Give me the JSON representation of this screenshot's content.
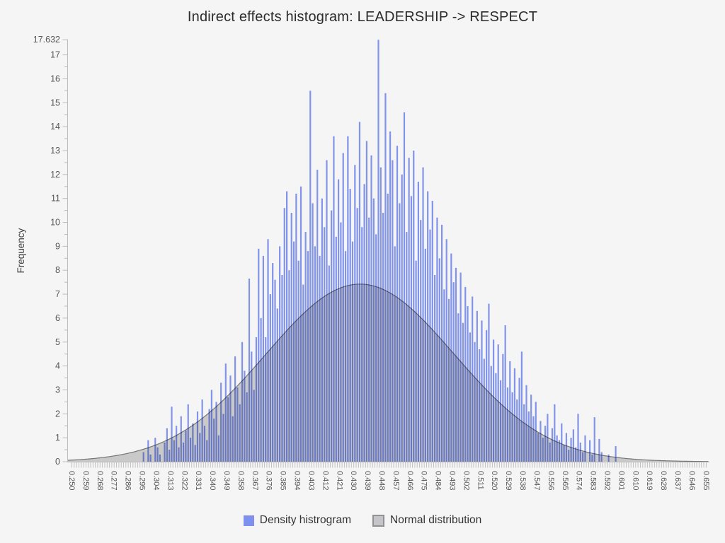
{
  "title": "Indirect effects histogram: LEADERSHIP -> RESPECT",
  "colors": {
    "background": "#f5f5f6",
    "bar": "#8294ea",
    "normal_fill": "#d2d2d2",
    "normal_stroke": "#7a7a7a",
    "axis": "#bcbcbf",
    "tick_text": "#575757",
    "axis_title_text": "#3f3f3f",
    "title_text": "#2b2b2b",
    "legend_blue": "#7e8fee",
    "legend_gray": "#c5c5c7"
  },
  "legend": {
    "items": [
      {
        "label": "Density histrogram",
        "swatch": "blue"
      },
      {
        "label": "Normal distribution",
        "swatch": "gray"
      }
    ]
  },
  "chart_data": {
    "type": "bar",
    "title": "Indirect effects histogram: LEADERSHIP -> RESPECT",
    "xlabel": "",
    "ylabel": "Frequency",
    "ylim": [
      0,
      17.632
    ],
    "y_tick_labels": [
      "0",
      "1",
      "2",
      "3",
      "4",
      "5",
      "6",
      "7",
      "8",
      "9",
      "10",
      "11",
      "12",
      "13",
      "14",
      "15",
      "16",
      "17"
    ],
    "y_max_label": "17.632",
    "y_minor_tick_step": 0.5,
    "x_start": 0.25,
    "bin_width": 0.0015,
    "bin_count": 270,
    "x_label_step": 0.009,
    "x_tick_labels": [
      "0.250",
      "0.259",
      "0.268",
      "0.277",
      "0.286",
      "0.295",
      "0.304",
      "0.313",
      "0.322",
      "0.331",
      "0.340",
      "0.349",
      "0.358",
      "0.367",
      "0.376",
      "0.385",
      "0.394",
      "0.403",
      "0.412",
      "0.421",
      "0.430",
      "0.439",
      "0.448",
      "0.457",
      "0.466",
      "0.475",
      "0.484",
      "0.493",
      "0.502",
      "0.511",
      "0.520",
      "0.529",
      "0.538",
      "0.547",
      "0.556",
      "0.565",
      "0.574",
      "0.583",
      "0.592",
      "0.601",
      "0.610",
      "0.619",
      "0.628",
      "0.637",
      "0.646",
      "0.655"
    ],
    "legend_position": "bottom",
    "grid": false,
    "values": [
      0,
      0,
      0,
      0,
      0,
      0,
      0,
      0,
      0,
      0,
      0,
      0,
      0,
      0,
      0,
      0,
      0,
      0,
      0,
      0,
      0,
      0,
      0,
      0,
      0,
      0,
      0,
      0,
      0,
      0,
      0.4,
      0,
      0.9,
      0.3,
      0,
      1.0,
      0.6,
      0.3,
      0,
      0.8,
      1.4,
      0.5,
      2.3,
      0.9,
      1.5,
      0.6,
      1.9,
      0.8,
      1.3,
      2.4,
      1.0,
      1.6,
      0.7,
      2.1,
      1.2,
      2.6,
      1.5,
      0.9,
      2.2,
      3.0,
      1.8,
      2.5,
      1.1,
      3.3,
      2.0,
      4.1,
      2.7,
      3.6,
      1.9,
      4.4,
      3.1,
      2.4,
      5.0,
      3.8,
      2.9,
      7.65,
      4.6,
      3.0,
      5.2,
      8.9,
      6.0,
      8.6,
      5.2,
      9.3,
      7.0,
      8.3,
      7.6,
      6.4,
      9.0,
      7.8,
      10.6,
      11.3,
      8.0,
      10.4,
      9.2,
      11.2,
      8.4,
      11.5,
      7.4,
      9.6,
      8.8,
      15.5,
      10.8,
      9.0,
      12.2,
      8.6,
      11.0,
      9.8,
      12.6,
      8.2,
      10.5,
      13.6,
      9.4,
      11.8,
      10.0,
      12.9,
      8.8,
      13.6,
      11.4,
      9.2,
      12.4,
      10.6,
      14.2,
      9.8,
      11.6,
      13.4,
      10.2,
      12.8,
      11.0,
      9.5,
      17.632,
      12.3,
      10.4,
      15.4,
      11.2,
      13.8,
      12.6,
      9.0,
      13.2,
      10.8,
      12.0,
      14.6,
      9.6,
      12.7,
      11.1,
      13.0,
      8.4,
      11.7,
      10.1,
      12.3,
      8.9,
      11.3,
      9.7,
      10.9,
      7.8,
      10.2,
      8.5,
      9.9,
      7.2,
      9.3,
      6.8,
      8.7,
      7.5,
      8.1,
      6.2,
      7.9,
      5.8,
      7.3,
      6.5,
      5.4,
      6.9,
      5.0,
      6.3,
      4.7,
      5.9,
      4.3,
      5.5,
      6.6,
      4.0,
      5.1,
      3.7,
      4.9,
      3.4,
      4.5,
      5.7,
      3.1,
      4.2,
      2.9,
      3.9,
      2.6,
      3.5,
      4.6,
      2.4,
      3.2,
      2.1,
      2.8,
      1.9,
      2.5,
      1.2,
      1.7,
      1.0,
      1.5,
      2.0,
      0.8,
      1.4,
      2.4,
      1.1,
      0.9,
      1.6,
      0.7,
      1.2,
      0.5,
      1.0,
      1.35,
      0.6,
      2.0,
      0.8,
      0.4,
      1.1,
      0,
      0.9,
      0.3,
      1.86,
      0,
      0.95,
      0.4,
      0,
      0,
      0.3,
      0,
      0,
      0.65,
      0,
      0,
      0,
      0,
      0,
      0,
      0,
      0,
      0,
      0,
      0,
      0,
      0,
      0,
      0,
      0,
      0,
      0,
      0,
      0,
      0,
      0,
      0,
      0,
      0,
      0,
      0,
      0,
      0,
      0,
      0,
      0,
      0,
      0,
      0,
      0
    ],
    "overlay_normal": {
      "type": "area",
      "mean": 0.434,
      "sd": 0.06,
      "peak": 7.42
    }
  }
}
